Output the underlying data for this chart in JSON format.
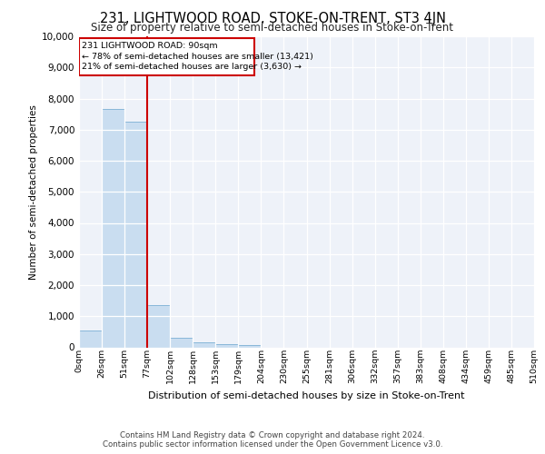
{
  "title": "231, LIGHTWOOD ROAD, STOKE-ON-TRENT, ST3 4JN",
  "subtitle": "Size of property relative to semi-detached houses in Stoke-on-Trent",
  "xlabel": "Distribution of semi-detached houses by size in Stoke-on-Trent",
  "ylabel": "Number of semi-detached properties",
  "bin_labels": [
    "0sqm",
    "26sqm",
    "51sqm",
    "77sqm",
    "102sqm",
    "128sqm",
    "153sqm",
    "179sqm",
    "204sqm",
    "230sqm",
    "255sqm",
    "281sqm",
    "306sqm",
    "332sqm",
    "357sqm",
    "383sqm",
    "408sqm",
    "434sqm",
    "459sqm",
    "485sqm",
    "510sqm"
  ],
  "bar_values": [
    550,
    7650,
    7250,
    1350,
    300,
    170,
    100,
    75,
    0,
    0,
    0,
    0,
    0,
    0,
    0,
    0,
    0,
    0,
    0,
    0
  ],
  "bar_color": "#c9ddf0",
  "bar_edge_color": "#7bafd4",
  "vline_color": "#cc0000",
  "annotation_title": "231 LIGHTWOOD ROAD: 90sqm",
  "annotation_line1": "← 78% of semi-detached houses are smaller (13,421)",
  "annotation_line2": "21% of semi-detached houses are larger (3,630) →",
  "annotation_box_color": "#cc0000",
  "ylim": [
    0,
    10000
  ],
  "yticks": [
    0,
    1000,
    2000,
    3000,
    4000,
    5000,
    6000,
    7000,
    8000,
    9000,
    10000
  ],
  "background_color": "#eef2f9",
  "footer_line1": "Contains HM Land Registry data © Crown copyright and database right 2024.",
  "footer_line2": "Contains public sector information licensed under the Open Government Licence v3.0."
}
